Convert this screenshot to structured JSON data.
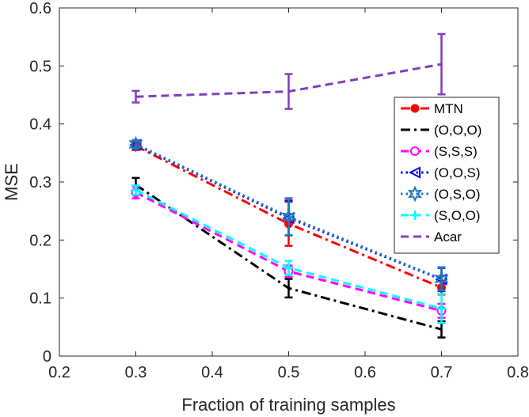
{
  "chart_data": {
    "type": "line",
    "title": "",
    "xlabel": "Fraction of training samples",
    "ylabel": "MSE",
    "xlim": [
      0.2,
      0.8
    ],
    "ylim": [
      0,
      0.6
    ],
    "xticks": [
      "0.2",
      "0.3",
      "0.4",
      "0.5",
      "0.6",
      "0.7",
      "0.8"
    ],
    "yticks": [
      "0",
      "0.1",
      "0.2",
      "0.3",
      "0.4",
      "0.5",
      "0.6"
    ],
    "legend_placement": "right",
    "grid": false,
    "x": [
      0.3,
      0.5,
      0.7
    ],
    "series": [
      {
        "name": "MTN",
        "values": [
          0.362,
          0.228,
          0.118
        ],
        "error": [
          0.007,
          0.038,
          0.012
        ],
        "color": "#ff0000",
        "dash": "dashdot",
        "marker": "dot"
      },
      {
        "name": "(O,O,O)",
        "values": [
          0.295,
          0.117,
          0.046
        ],
        "error": [
          0.012,
          0.016,
          0.014
        ],
        "color": "#000000",
        "dash": "dashdot",
        "marker": "none"
      },
      {
        "name": "(S,S,S)",
        "values": [
          0.282,
          0.146,
          0.078
        ],
        "error": [
          0.01,
          0.01,
          0.012
        ],
        "color": "#ff00ff",
        "dash": "dashed",
        "marker": "circle"
      },
      {
        "name": "(O,O,S)",
        "values": [
          0.364,
          0.238,
          0.132
        ],
        "error": [
          0.007,
          0.03,
          0.02
        ],
        "color": "#0000ff",
        "dash": "dotted",
        "marker": "triangle-left"
      },
      {
        "name": "(O,S,O)",
        "values": [
          0.365,
          0.24,
          0.133
        ],
        "error": [
          0.007,
          0.032,
          0.02
        ],
        "color": "#1f77c0",
        "dash": "dotted",
        "marker": "star"
      },
      {
        "name": "(S,O,O)",
        "values": [
          0.286,
          0.152,
          0.082
        ],
        "error": [
          0.008,
          0.012,
          0.025
        ],
        "color": "#00ffff",
        "dash": "dashed",
        "marker": "plus"
      },
      {
        "name": "Acar",
        "values": [
          0.447,
          0.456,
          0.503
        ],
        "error": [
          0.01,
          0.03,
          0.052
        ],
        "color": "#7f3fbf",
        "dash": "dashed",
        "marker": "none"
      }
    ]
  }
}
